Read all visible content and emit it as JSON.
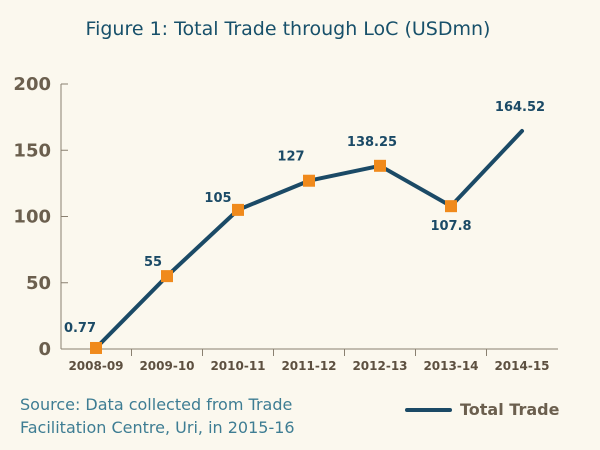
{
  "chart_data": {
    "type": "line",
    "title": "Figure 1: Total Trade through LoC (USDmn)",
    "categories": [
      "2008-09",
      "2009-10",
      "2010-11",
      "2011-12",
      "2012-13",
      "2013-14",
      "2014-15"
    ],
    "series": [
      {
        "name": "Total Trade",
        "values": [
          0.77,
          55,
          105,
          127,
          138.25,
          107.8,
          164.52
        ],
        "data_labels": [
          "0.77",
          "55",
          "105",
          "127",
          "138.25",
          "107.8",
          "164.52"
        ],
        "marker": "square",
        "color": "#1b4a66",
        "marker_color": "#f08a1c"
      }
    ],
    "ylim": [
      0,
      200
    ],
    "yticks": [
      0,
      50,
      100,
      150,
      200
    ],
    "xlabel": "",
    "ylabel": "",
    "grid": false,
    "legend": "bottom-right"
  },
  "source": {
    "line1": "Source: Data collected from Trade",
    "line2": "Facilitation Centre, Uri, in 2015-16"
  },
  "colors": {
    "background": "#fbf8ee",
    "title": "#17506a",
    "line": "#1b4a66",
    "marker": "#f08a1c",
    "axis_text": "#6b5f4e",
    "source_text": "#3e7d93"
  }
}
